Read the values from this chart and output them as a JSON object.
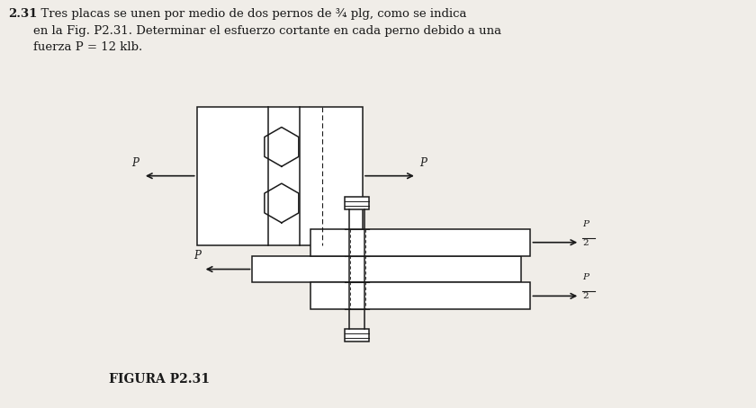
{
  "background_color": "#f0ede8",
  "title_number": "2.31",
  "title_text": "  Tres placas se unen por medio de dos pernos de ¾ plg, como se indica\nen la Fig. P2.31. Determinar el esfuerzo cortante en cada perno debido a una\nfuerza P = 12 klb.",
  "figure_label": "FIGURA P2.31",
  "line_color": "#1a1a1a",
  "text_color": "#1a1a1a",
  "fontsize_title": 9.5,
  "fontsize_label": 10,
  "fontsize_P": 8.5
}
